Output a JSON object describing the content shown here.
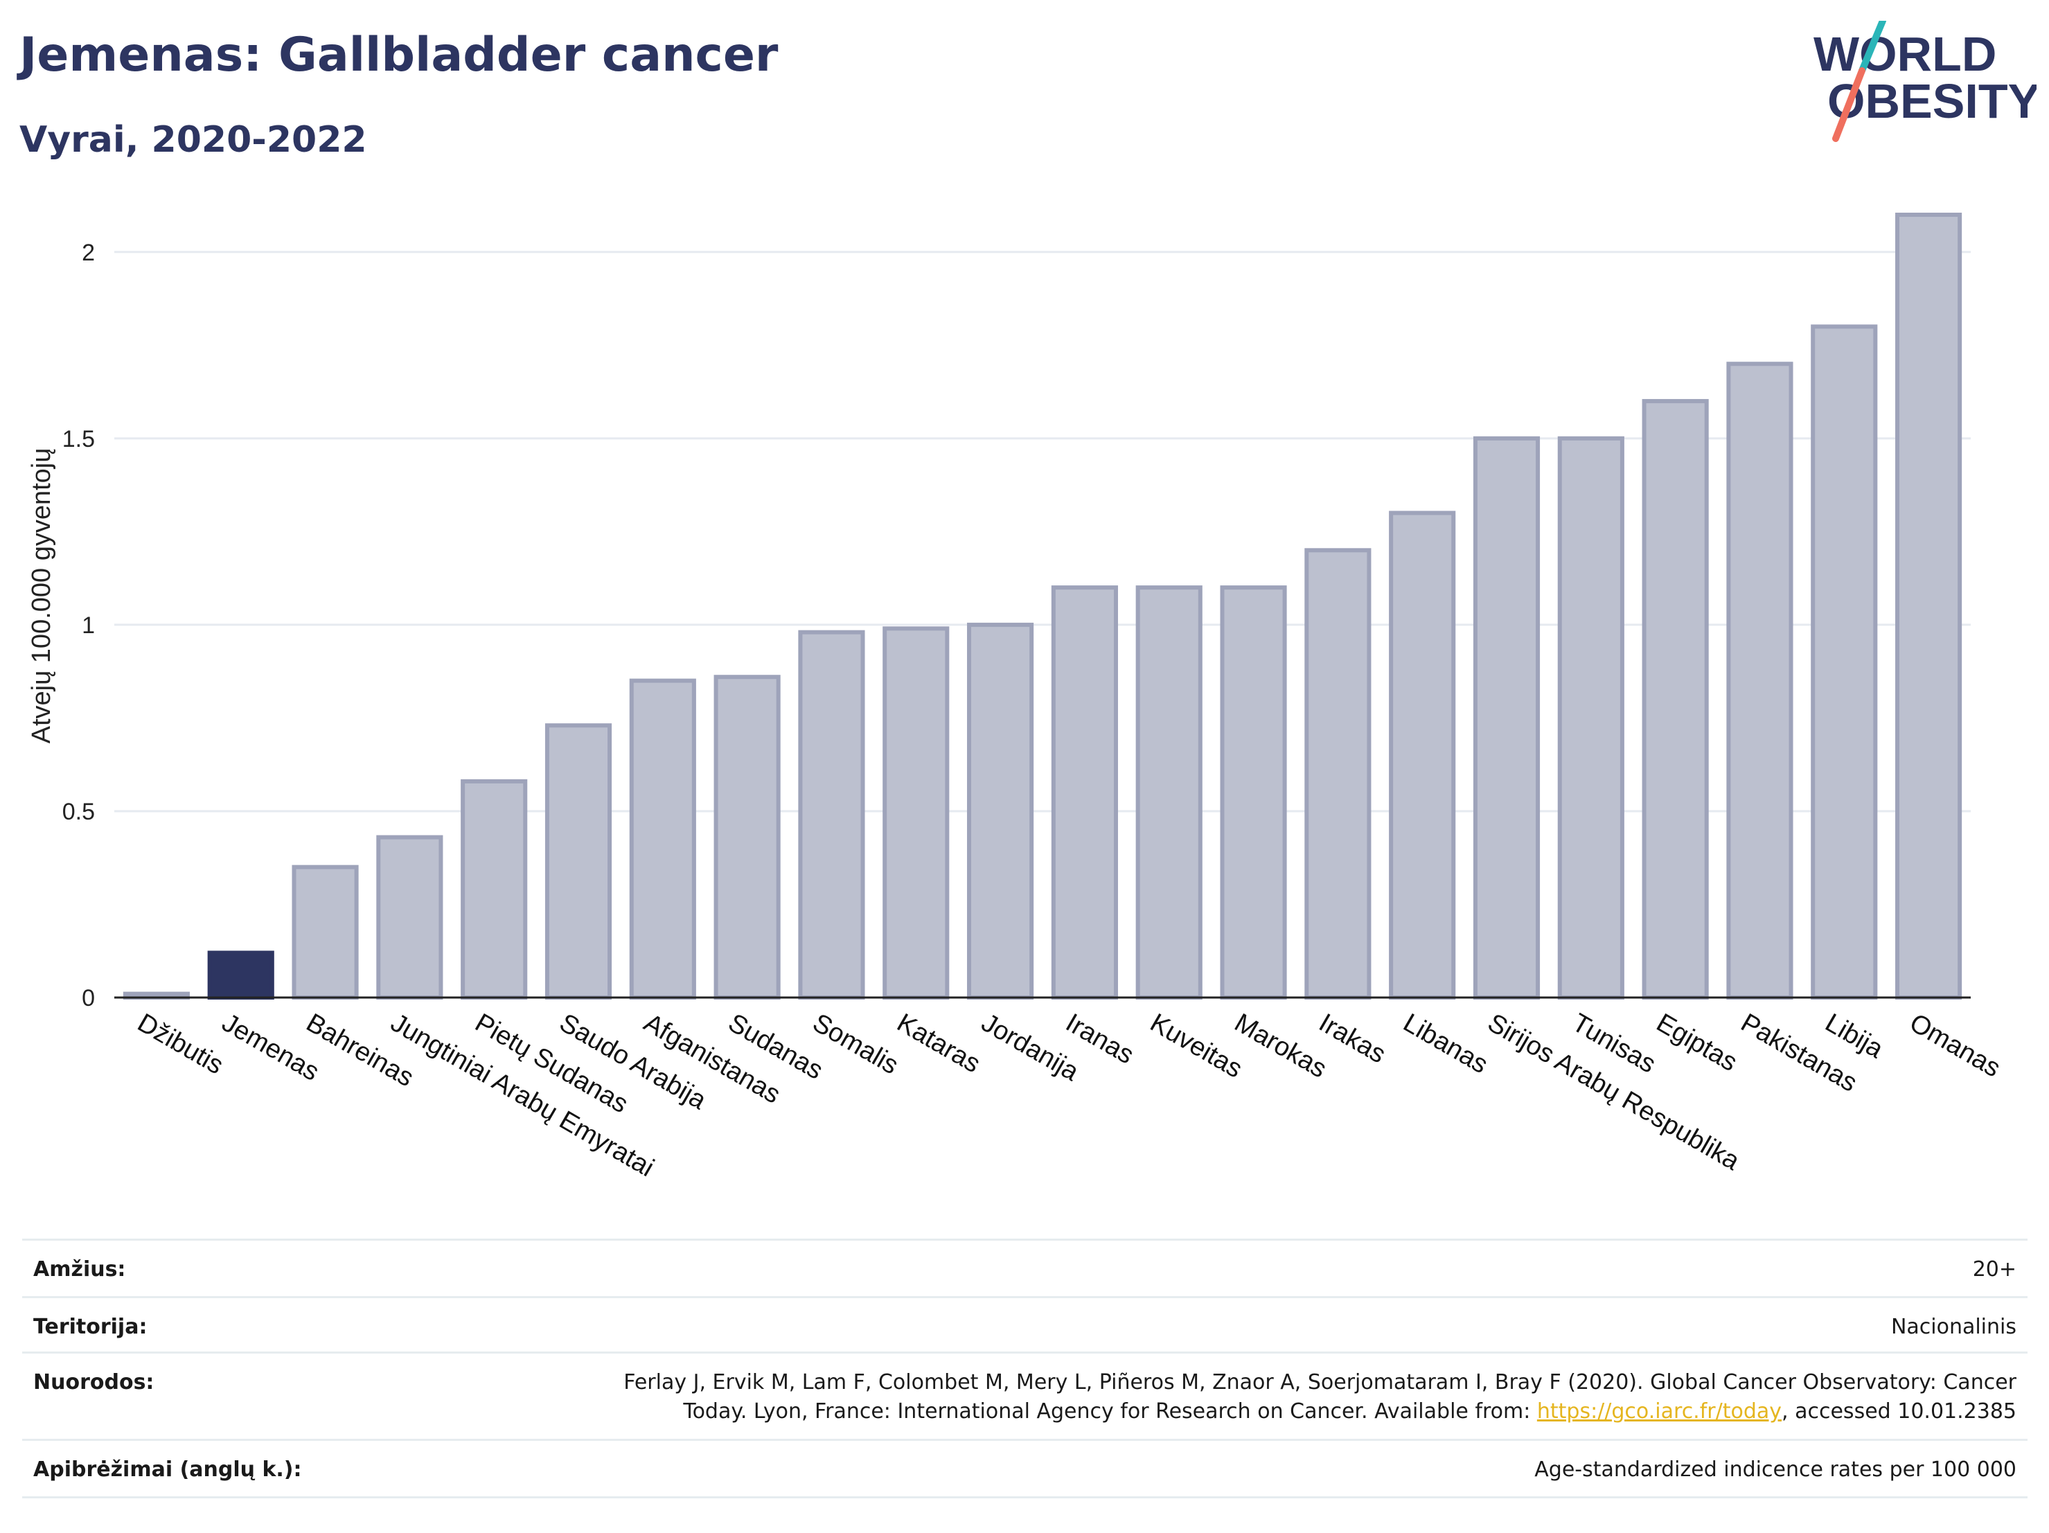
{
  "header": {
    "title": "Jemenas: Gallbladder cancer",
    "subtitle": "Vyrai, 2020-2022"
  },
  "logo": {
    "line1": "WORLD",
    "line2": "OBESITY",
    "colors": {
      "text": "#2d3561",
      "slash_teal": "#2bb5b8",
      "slash_coral": "#ef6f5e"
    }
  },
  "chart_data": {
    "type": "bar",
    "ylabel": "Atvejų 100.000 gyventojų",
    "xlabel": "",
    "ylim": [
      0,
      2.1
    ],
    "yticks": [
      0,
      0.5,
      1,
      1.5,
      2
    ],
    "ytick_labels": [
      "0",
      "0.5",
      "1",
      "1.5",
      "2"
    ],
    "grid": true,
    "categories": [
      "Džibutis",
      "Jemenas",
      "Bahreinas",
      "Jungtiniai Arabų Emyratai",
      "Pietų Sudanas",
      "Saudo Arabija",
      "Afganistanas",
      "Sudanas",
      "Somalis",
      "Kataras",
      "Jordanija",
      "Iranas",
      "Kuveitas",
      "Marokas",
      "Irakas",
      "Libanas",
      "Sirijos Arabų Respublika",
      "Tunisas",
      "Egiptas",
      "Pakistanas",
      "Libija",
      "Omanas"
    ],
    "values": [
      0.01,
      0.12,
      0.35,
      0.43,
      0.58,
      0.73,
      0.85,
      0.86,
      0.98,
      0.99,
      1.0,
      1.1,
      1.1,
      1.1,
      1.2,
      1.3,
      1.5,
      1.5,
      1.6,
      1.7,
      1.8,
      2.1
    ],
    "highlight": "Jemenas",
    "colors": {
      "bar": "#bcc0cf",
      "bar_edge": "#9ea3ba",
      "highlight": "#2d3561",
      "grid": "#e6eaf0",
      "axis": "#222222"
    }
  },
  "meta": {
    "age": {
      "label": "Amžius:",
      "value": "20+"
    },
    "territory": {
      "label": "Teritorija:",
      "value": "Nacionalinis"
    },
    "references": {
      "label": "Nuorodos:",
      "line1": "Ferlay J, Ervik M, Lam F, Colombet M, Mery L, Piñeros M, Znaor A, Soerjomataram I, Bray F (2020). Global Cancer Observatory: Cancer",
      "line2_pre": "Today. Lyon, France: International Agency for Research on Cancer. Available from: ",
      "link": "https://gco.iarc.fr/today",
      "line2_post": ", accessed 10.01.2385"
    },
    "definitions": {
      "label": "Apibrėžimai (anglų k.):",
      "value": "Age-standardized indicence rates per 100 000"
    }
  }
}
